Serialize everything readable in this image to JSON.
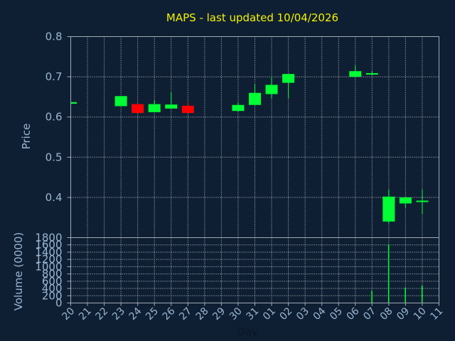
{
  "chart_data": [
    {
      "type": "candlestick",
      "title": "MAPS - last updated 10/04/2026",
      "ylabel": "Price",
      "ylim": [
        0.3,
        0.8
      ],
      "yticks": [
        "0.4",
        "0.5",
        "0.6",
        "0.7",
        "0.8"
      ],
      "grid": true,
      "colors": {
        "up": "#00ff33",
        "down": "#ff0000",
        "background": "#0f1f33",
        "text": "#98b6d2",
        "title": "#f2f200"
      },
      "x": [
        "20",
        "21",
        "22",
        "23",
        "24",
        "25",
        "26",
        "27",
        "28",
        "29",
        "30",
        "31",
        "01",
        "02",
        "03",
        "04",
        "05",
        "06",
        "07",
        "08",
        "09",
        "10",
        "11"
      ],
      "candles": [
        {
          "day": "20",
          "open": 0.633,
          "close": 0.637,
          "high": 0.637,
          "low": 0.633,
          "direction": "up"
        },
        {
          "day": "23",
          "open": 0.627,
          "close": 0.652,
          "high": 0.652,
          "low": 0.627,
          "direction": "up"
        },
        {
          "day": "24",
          "open": 0.632,
          "close": 0.61,
          "high": 0.632,
          "low": 0.61,
          "direction": "down"
        },
        {
          "day": "25",
          "open": 0.612,
          "close": 0.632,
          "high": 0.642,
          "low": 0.612,
          "direction": "up"
        },
        {
          "day": "26",
          "open": 0.621,
          "close": 0.631,
          "high": 0.662,
          "low": 0.621,
          "direction": "up"
        },
        {
          "day": "27",
          "open": 0.628,
          "close": 0.61,
          "high": 0.637,
          "low": 0.61,
          "direction": "down"
        },
        {
          "day": "30",
          "open": 0.615,
          "close": 0.63,
          "high": 0.637,
          "low": 0.615,
          "direction": "up"
        },
        {
          "day": "31",
          "open": 0.63,
          "close": 0.66,
          "high": 0.681,
          "low": 0.63,
          "direction": "up"
        },
        {
          "day": "01",
          "open": 0.657,
          "close": 0.68,
          "high": 0.7,
          "low": 0.647,
          "direction": "up"
        },
        {
          "day": "02",
          "open": 0.685,
          "close": 0.707,
          "high": 0.707,
          "low": 0.647,
          "direction": "up"
        },
        {
          "day": "06",
          "open": 0.7,
          "close": 0.714,
          "high": 0.728,
          "low": 0.7,
          "direction": "up"
        },
        {
          "day": "07",
          "open": 0.707,
          "close": 0.709,
          "high": 0.714,
          "low": 0.705,
          "direction": "up"
        },
        {
          "day": "08",
          "open": 0.34,
          "close": 0.402,
          "high": 0.42,
          "low": 0.335,
          "direction": "up"
        },
        {
          "day": "09",
          "open": 0.385,
          "close": 0.4,
          "high": 0.4,
          "low": 0.375,
          "direction": "up"
        },
        {
          "day": "10",
          "open": 0.39,
          "close": 0.392,
          "high": 0.42,
          "low": 0.358,
          "direction": "up"
        }
      ]
    },
    {
      "type": "bar",
      "ylabel": "Volume (0000)",
      "xlabel": "Day",
      "ylim": [
        0,
        1800
      ],
      "yticks": [
        "0",
        "200",
        "400",
        "600",
        "800",
        "1000",
        "1200",
        "1400",
        "1600",
        "1800"
      ],
      "grid": true,
      "categories": [
        "20",
        "23",
        "24",
        "25",
        "26",
        "27",
        "30",
        "31",
        "01",
        "02",
        "06",
        "07",
        "08",
        "09",
        "10"
      ],
      "values": [
        3,
        5,
        20,
        4,
        6,
        12,
        4,
        8,
        8,
        8,
        4,
        340,
        1620,
        420,
        480
      ],
      "colors": [
        "#00ff33",
        "#00ff33",
        "#ff0000",
        "#00ff33",
        "#00ff33",
        "#ff0000",
        "#00ff33",
        "#00ff33",
        "#00ff33",
        "#00ff33",
        "#00ff33",
        "#00ff33",
        "#00ff33",
        "#00ff33",
        "#00ff33"
      ]
    }
  ]
}
